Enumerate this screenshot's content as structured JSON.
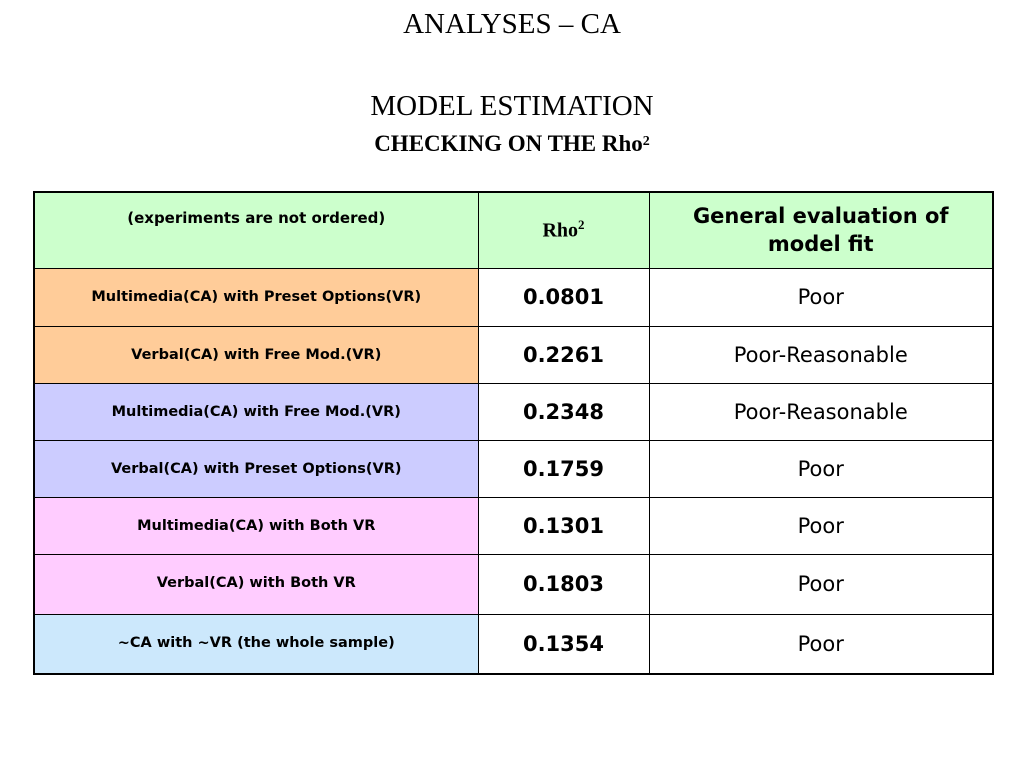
{
  "titles": {
    "line1": "ANALYSES – CA",
    "line2": "MODEL ESTIMATION",
    "line3": "CHECKING ON THE Rho",
    "line3_sup": "2"
  },
  "table": {
    "headers": {
      "col1": "(experiments are not ordered)",
      "col2": "Rho",
      "col2_sup": "2",
      "col3": "General evaluation of model fit"
    },
    "rows": [
      {
        "label": "Multimedia(CA) with Preset Options(VR)",
        "rho2": "0.0801",
        "evaluation": "Poor",
        "color": "#ffcc99"
      },
      {
        "label": "Verbal(CA) with Free Mod.(VR)",
        "rho2": "0.2261",
        "evaluation": "Poor-Reasonable",
        "color": "#ffcc99"
      },
      {
        "label": "Multimedia(CA) with Free Mod.(VR)",
        "rho2": "0.2348",
        "evaluation": "Poor-Reasonable",
        "color": "#ccccff"
      },
      {
        "label": "Verbal(CA) with Preset Options(VR)",
        "rho2": "0.1759",
        "evaluation": "Poor",
        "color": "#ccccff"
      },
      {
        "label": "Multimedia(CA) with Both VR",
        "rho2": "0.1301",
        "evaluation": "Poor",
        "color": "#ffccff"
      },
      {
        "label": "Verbal(CA) with Both VR",
        "rho2": "0.1803",
        "evaluation": "Poor",
        "color": "#ffccff"
      },
      {
        "label": "~CA with ~VR (the whole sample)",
        "rho2": "0.1354",
        "evaluation": "Poor",
        "color": "#cce8fc"
      }
    ],
    "header_color": "#ccffcc"
  }
}
